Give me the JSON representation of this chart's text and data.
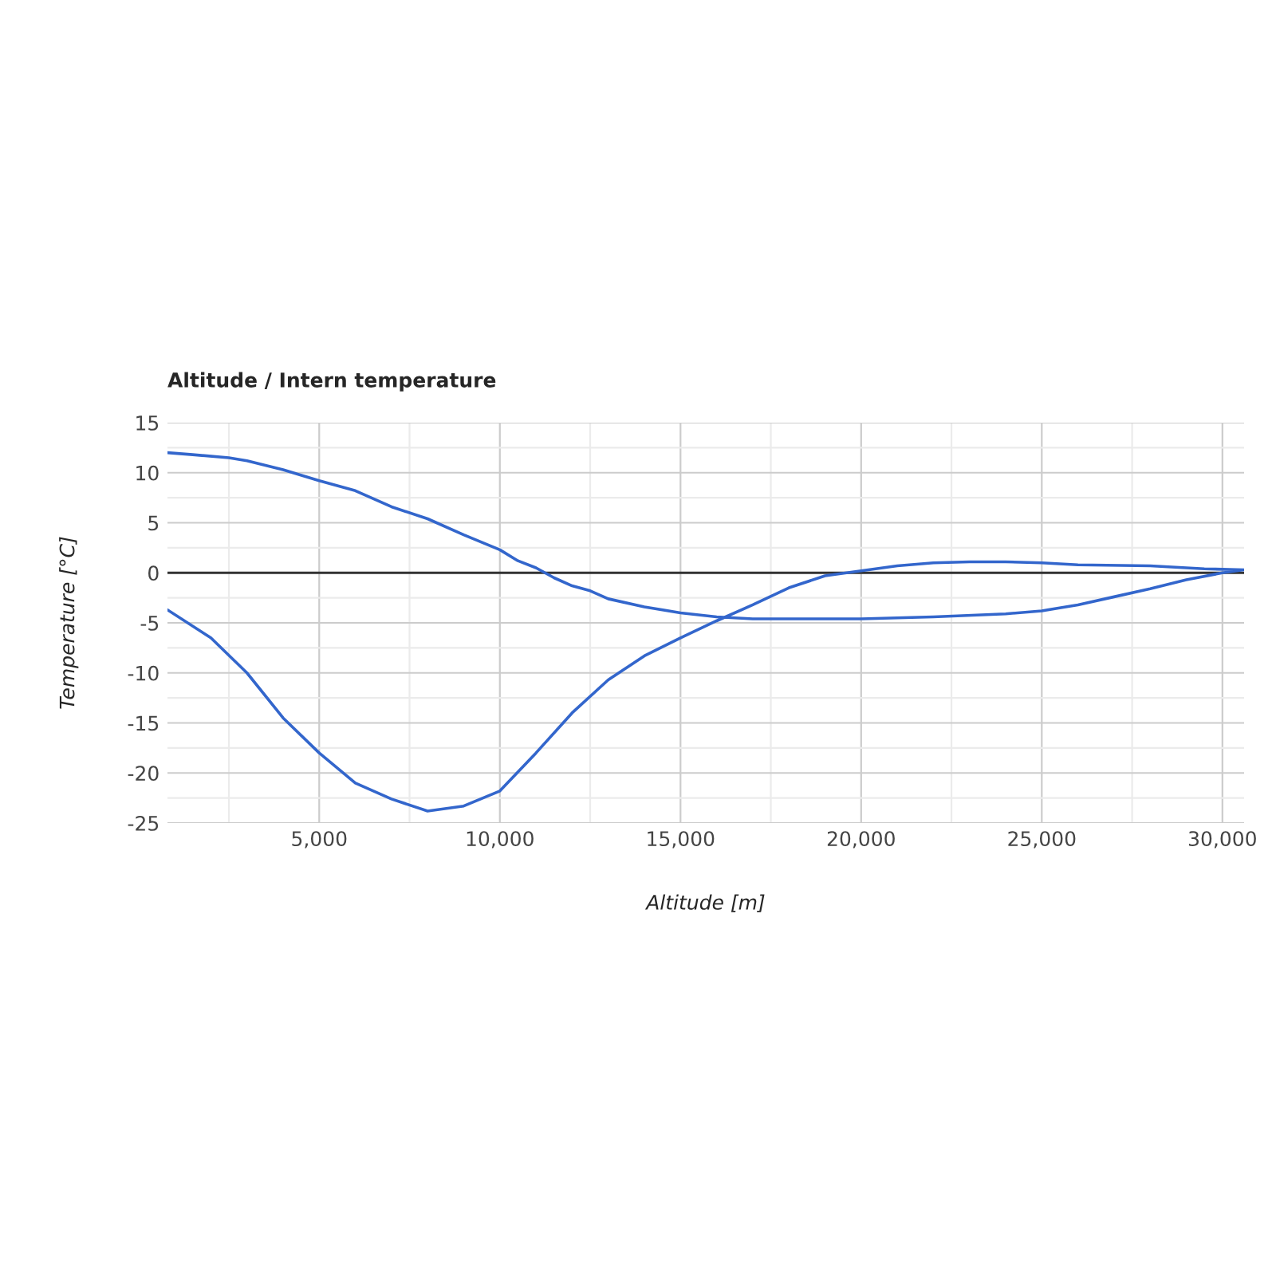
{
  "chart_data": {
    "type": "line",
    "title": "Altitude / Intern temperature",
    "xlabel": "Altitude [m]",
    "ylabel": "Temperature [°C]",
    "series": [
      {
        "color": "#3366cc",
        "x": [
          800,
          1500,
          2500,
          3000,
          4000,
          5000,
          6000,
          7000,
          8000,
          9000,
          10000,
          10500,
          11000,
          11500,
          12000,
          12500,
          13000,
          14000,
          15000,
          16000,
          17000,
          18000,
          20000,
          22000,
          24000,
          25000,
          26000,
          27000,
          28000,
          29000,
          30000,
          30600,
          29500,
          28000,
          26000,
          25000,
          24000,
          23000,
          22000,
          21000,
          20000,
          19000,
          18000,
          17000,
          16000,
          15000,
          14000,
          13000,
          12000,
          11000,
          10000,
          9000,
          8000,
          7000,
          6000,
          5000,
          4000,
          3000,
          2000,
          800
        ],
        "values": [
          12,
          11.8,
          11.5,
          11.2,
          10.3,
          9.2,
          8.2,
          6.6,
          5.4,
          3.8,
          2.3,
          1.2,
          0.5,
          -0.5,
          -1.3,
          -1.8,
          -2.6,
          -3.4,
          -4.0,
          -4.4,
          -4.6,
          -4.6,
          -4.6,
          -4.4,
          -4.1,
          -3.8,
          -3.2,
          -2.4,
          -1.6,
          -0.7,
          0,
          0.3,
          0.4,
          0.7,
          0.8,
          1,
          1.1,
          1.1,
          1.0,
          0.7,
          0.2,
          -0.3,
          -1.5,
          -3.2,
          -4.8,
          -6.5,
          -8.3,
          -10.7,
          -14,
          -18,
          -21.8,
          -23.3,
          -23.8,
          -22.6,
          -21,
          -18,
          -14.5,
          -10,
          -6.5,
          -3.7
        ]
      }
    ],
    "xlim": [
      800,
      30600
    ],
    "xticks": [
      {
        "value": 5000,
        "label": "5,000"
      },
      {
        "value": 10000,
        "label": "10,000"
      },
      {
        "value": 15000,
        "label": "15,000"
      },
      {
        "value": 20000,
        "label": "20,000"
      },
      {
        "value": 25000,
        "label": "25,000"
      },
      {
        "value": 30000,
        "label": "30,000"
      }
    ],
    "ylim": [
      -25,
      15
    ],
    "yticks": [
      -25,
      -20,
      -15,
      -10,
      -5,
      0,
      5,
      10,
      15
    ],
    "ref_lines": [
      {
        "axis": "y",
        "value": 0,
        "color": "#333333"
      }
    ],
    "grid": true,
    "marker": "none",
    "line_style": "solid"
  }
}
